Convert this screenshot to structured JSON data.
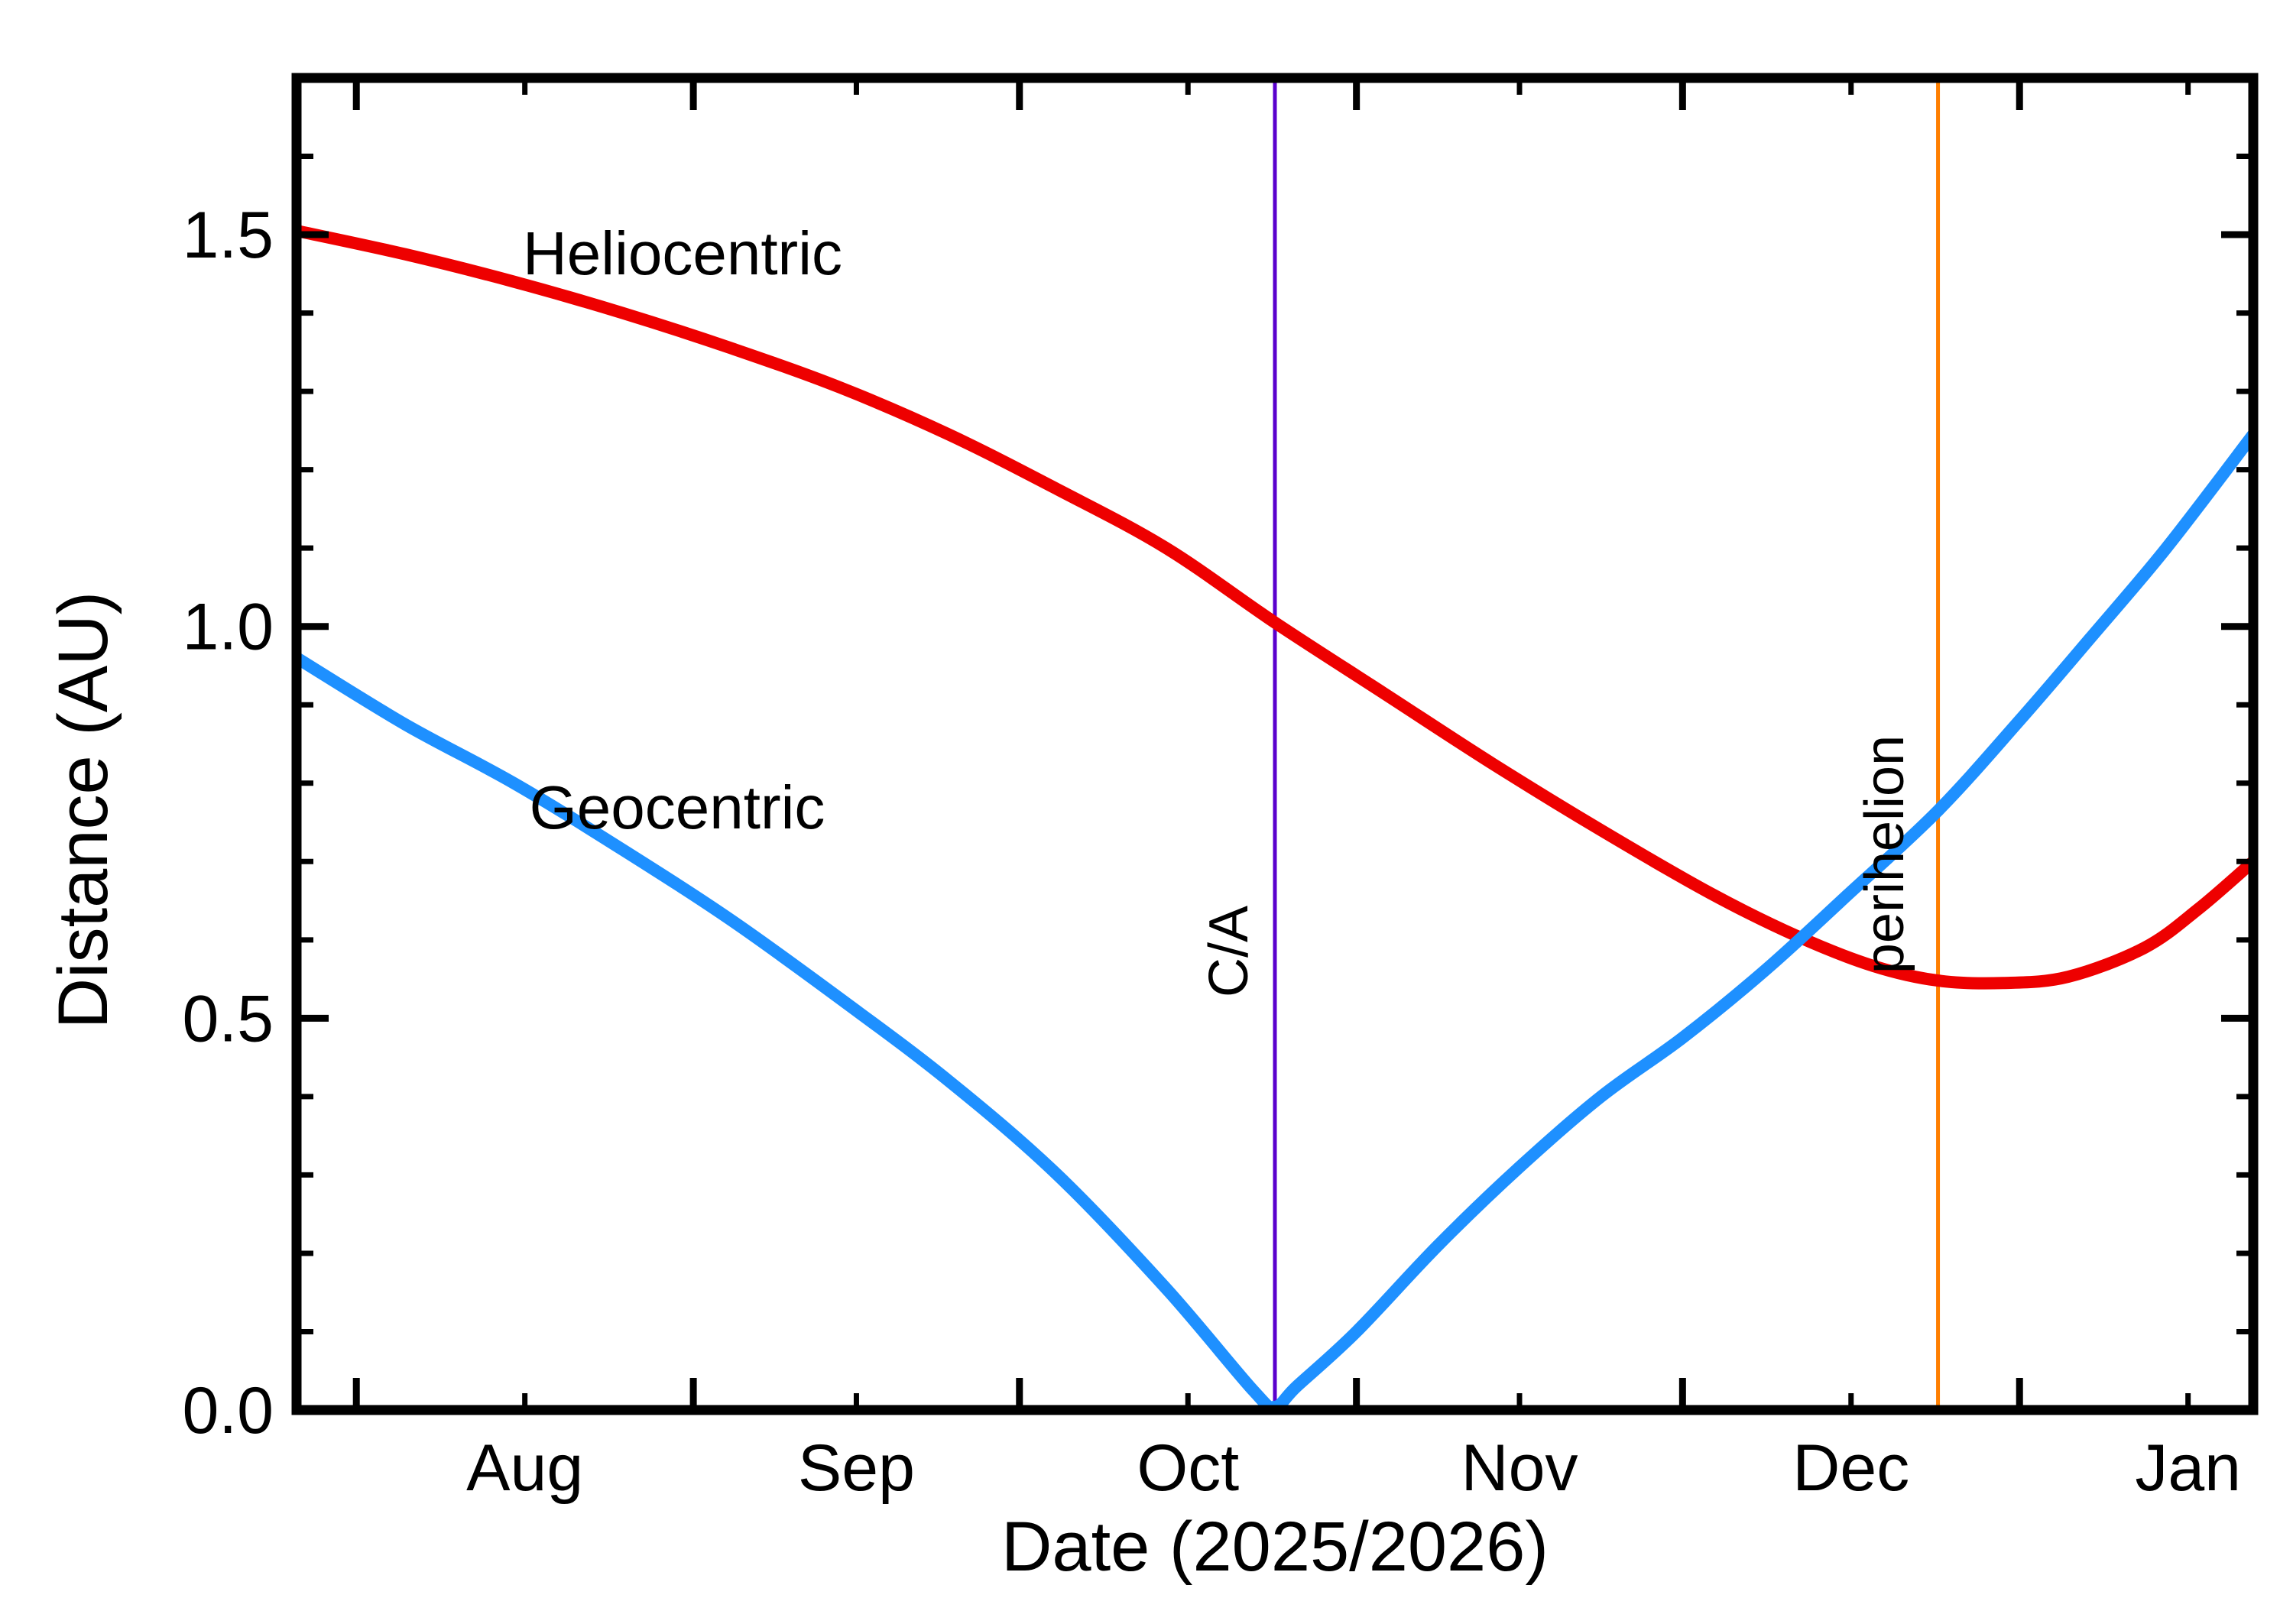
{
  "chart_data": {
    "type": "line",
    "title": "",
    "xlabel": "Date (2025/2026)",
    "ylabel": "Distance (AU)",
    "x_axis": {
      "min_day": 0,
      "max_day": 180,
      "months": [
        {
          "label": "Aug",
          "tick_day": 5.5,
          "label_day": 21
        },
        {
          "label": "Sep",
          "tick_day": 36.5,
          "label_day": 51.5
        },
        {
          "label": "Oct",
          "tick_day": 66.5,
          "label_day": 82
        },
        {
          "label": "Nov",
          "tick_day": 97.5,
          "label_day": 112.5
        },
        {
          "label": "Dec",
          "tick_day": 127.5,
          "label_day": 143
        },
        {
          "label": "Jan",
          "tick_day": 158.5,
          "label_day": 174
        }
      ],
      "minor_tick_days": [
        21,
        51.5,
        82,
        112.5,
        143,
        174
      ]
    },
    "y_axis": {
      "min": 0,
      "max": 1.7,
      "major_ticks": [
        0,
        0.5,
        1.0,
        1.5
      ],
      "tick_labels": [
        "0.0",
        "0.5",
        "1.0",
        "1.5"
      ],
      "minor_step": 0.1
    },
    "series": [
      {
        "name": "Heliocentric",
        "color": "#ee0000",
        "label": {
          "text": "Heliocentric",
          "day": 35.5,
          "au": 1.48
        },
        "points": [
          [
            0,
            1.505
          ],
          [
            10,
            1.475
          ],
          [
            20,
            1.44
          ],
          [
            30,
            1.4
          ],
          [
            40,
            1.355
          ],
          [
            50,
            1.305
          ],
          [
            60,
            1.245
          ],
          [
            70,
            1.175
          ],
          [
            80,
            1.1
          ],
          [
            90,
            1.005
          ],
          [
            100,
            0.915
          ],
          [
            110,
            0.825
          ],
          [
            120,
            0.74
          ],
          [
            130,
            0.66
          ],
          [
            138,
            0.605
          ],
          [
            145,
            0.567
          ],
          [
            151,
            0.548
          ],
          [
            157,
            0.545
          ],
          [
            163,
            0.553
          ],
          [
            170,
            0.59
          ],
          [
            175,
            0.64
          ],
          [
            180,
            0.7
          ]
        ]
      },
      {
        "name": "Geocentric",
        "color": "#1e90ff",
        "label": {
          "text": "Geocentric",
          "day": 35,
          "au": 0.77
        },
        "points": [
          [
            0,
            0.96
          ],
          [
            10,
            0.875
          ],
          [
            20,
            0.8
          ],
          [
            30,
            0.715
          ],
          [
            40,
            0.625
          ],
          [
            50,
            0.525
          ],
          [
            60,
            0.42
          ],
          [
            70,
            0.3
          ],
          [
            80,
            0.155
          ],
          [
            88,
            0.025
          ],
          [
            90,
            0.004
          ],
          [
            92,
            0.03
          ],
          [
            97.5,
            0.1
          ],
          [
            105,
            0.21
          ],
          [
            112.5,
            0.31
          ],
          [
            120,
            0.4
          ],
          [
            127.5,
            0.475
          ],
          [
            135,
            0.56
          ],
          [
            142.5,
            0.655
          ],
          [
            151,
            0.765
          ],
          [
            158.5,
            0.88
          ],
          [
            165,
            0.985
          ],
          [
            172,
            1.1
          ],
          [
            180,
            1.245
          ]
        ]
      }
    ],
    "event_lines": [
      {
        "id": "close-approach",
        "label": "C/A",
        "color": "#5a00cd",
        "day": 90,
        "label_au": 0.59
      },
      {
        "id": "perihelion",
        "label": "perihelion",
        "color": "#ff7f00",
        "day": 151,
        "label_au": 0.71
      }
    ]
  },
  "style_colors": {
    "frame": "#000000",
    "background": "#ffffff"
  }
}
